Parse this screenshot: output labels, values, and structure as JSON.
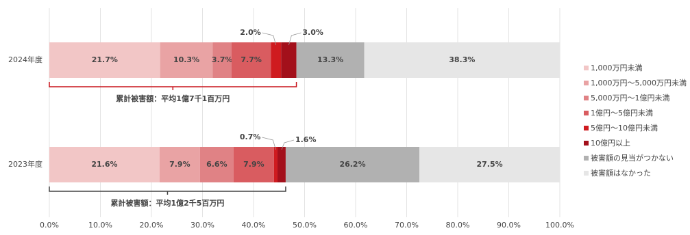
{
  "chart_data": {
    "type": "stacked-bar-horizontal",
    "categories": [
      "2024年度",
      "2023年度"
    ],
    "series": [
      {
        "name": "1,000万円未満",
        "color": "#f2c6c6",
        "values": [
          21.7,
          21.6
        ],
        "value_labels": [
          "21.7%",
          "21.6%"
        ]
      },
      {
        "name": "1,000万円～5,000万円未満",
        "color": "#e9a3a4",
        "values": [
          10.3,
          7.9
        ],
        "value_labels": [
          "10.3%",
          "7.9%"
        ]
      },
      {
        "name": "5,000万円～1億円未満",
        "color": "#e08285",
        "values": [
          3.7,
          6.6
        ],
        "value_labels": [
          "3.7%",
          "6.6%"
        ]
      },
      {
        "name": "1億円～5億円未満",
        "color": "#d95c60",
        "values": [
          7.7,
          7.9
        ],
        "value_labels": [
          "7.7%",
          "7.9%"
        ]
      },
      {
        "name": "5億円～10億円未満",
        "color": "#cf1b1f",
        "values": [
          2.0,
          0.7
        ],
        "value_labels": [
          "2.0%",
          "0.7%"
        ]
      },
      {
        "name": "10億円以上",
        "color": "#a3101b",
        "values": [
          3.0,
          1.6
        ],
        "value_labels": [
          "3.0%",
          "1.6%"
        ]
      },
      {
        "name": "被害額の見当がつかない",
        "color": "#b1b1b1",
        "values": [
          13.3,
          26.2
        ],
        "value_labels": [
          "13.3%",
          "26.2%"
        ]
      },
      {
        "name": "被害額はなかった",
        "color": "#e6e6e6",
        "values": [
          38.3,
          27.5
        ],
        "value_labels": [
          "38.3%",
          "27.5%"
        ]
      }
    ],
    "annotations": [
      {
        "text": "累計被害額：平均1億7千1百万円",
        "color": "#c8141c"
      },
      {
        "text": "累計被害額：平均1億2千5百万円",
        "color": "#444444"
      }
    ],
    "xlim": [
      0,
      100
    ],
    "xticks": [
      {
        "value": 0,
        "label": "0.0%"
      },
      {
        "value": 10,
        "label": "10.0%"
      },
      {
        "value": 20,
        "label": "20.0%"
      },
      {
        "value": 30,
        "label": "30.0%"
      },
      {
        "value": 40,
        "label": "40.0%"
      },
      {
        "value": 50,
        "label": "50.0%"
      },
      {
        "value": 60,
        "label": "60.0%"
      },
      {
        "value": 70,
        "label": "70.0%"
      },
      {
        "value": 80,
        "label": "80.0%"
      },
      {
        "value": 90,
        "label": "90.0%"
      },
      {
        "value": 100,
        "label": "100.0%"
      }
    ],
    "grid": true,
    "legend": "right"
  }
}
